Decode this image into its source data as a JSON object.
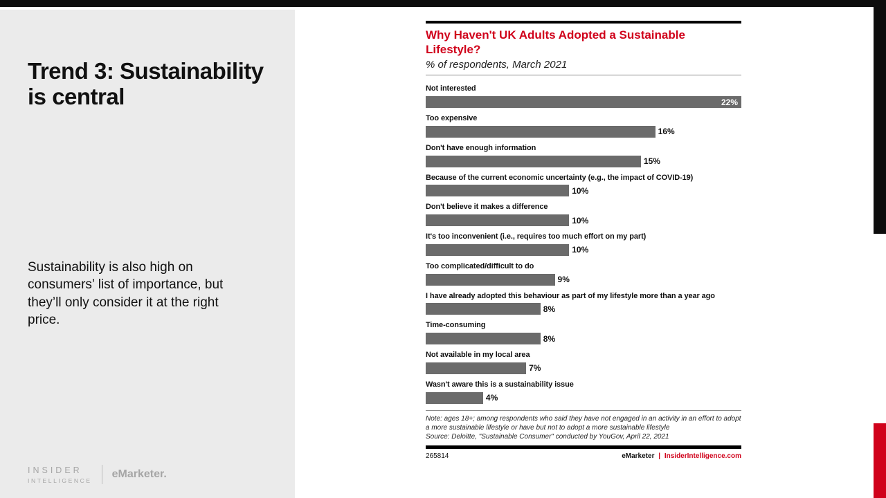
{
  "slide": {
    "title": "Trend 3: Sustainability is central",
    "body": "Sustainability is also high on consumers’ list of importance, but they’ll only consider it at the right price.",
    "logo": {
      "insider_line1": "INSIDER",
      "insider_line2": "INTELLIGENCE",
      "emarketer": "eMarketer."
    }
  },
  "chart_data": {
    "type": "bar",
    "orientation": "horizontal",
    "title": "Why Haven't UK Adults Adopted a Sustainable Lifestyle?",
    "subtitle": "% of respondents, March 2021",
    "categories": [
      "Not interested",
      "Too expensive",
      "Don't have enough information",
      "Because of the current economic uncertainty (e.g., the impact of COVID-19)",
      "Don't believe it makes a difference",
      "It's too inconvenient (i.e., requires too much effort on my part)",
      "Too complicated/difficult to do",
      "I have already adopted this behaviour as part of my lifestyle more than a year ago",
      "Time-consuming",
      "Not available in my local area",
      "Wasn't aware this is a sustainability issue"
    ],
    "values": [
      22,
      16,
      15,
      10,
      10,
      10,
      9,
      8,
      8,
      7,
      4
    ],
    "unit": "%",
    "xlim": [
      0,
      22
    ],
    "bar_color": "#6b6b6b",
    "title_color": "#d0021b",
    "grid": false,
    "legend": false,
    "note": "Note: ages 18+; among respondents who said they have not engaged in an activity in an effort to adopt a more sustainable lifestyle or have but not to adopt a more sustainable lifestyle",
    "source": "Source: Deloitte, \"Sustainable Consumer\" conducted by YouGov, April 22, 2021",
    "chart_id": "265814",
    "footer_brand": "eMarketer",
    "footer_separator": "|",
    "footer_site": "InsiderIntelligence.com"
  },
  "colors": {
    "accent_red": "#d0021b",
    "bar_gray": "#6b6b6b",
    "panel_gray": "#ebebeb",
    "strip_black": "#0d0d0d"
  }
}
